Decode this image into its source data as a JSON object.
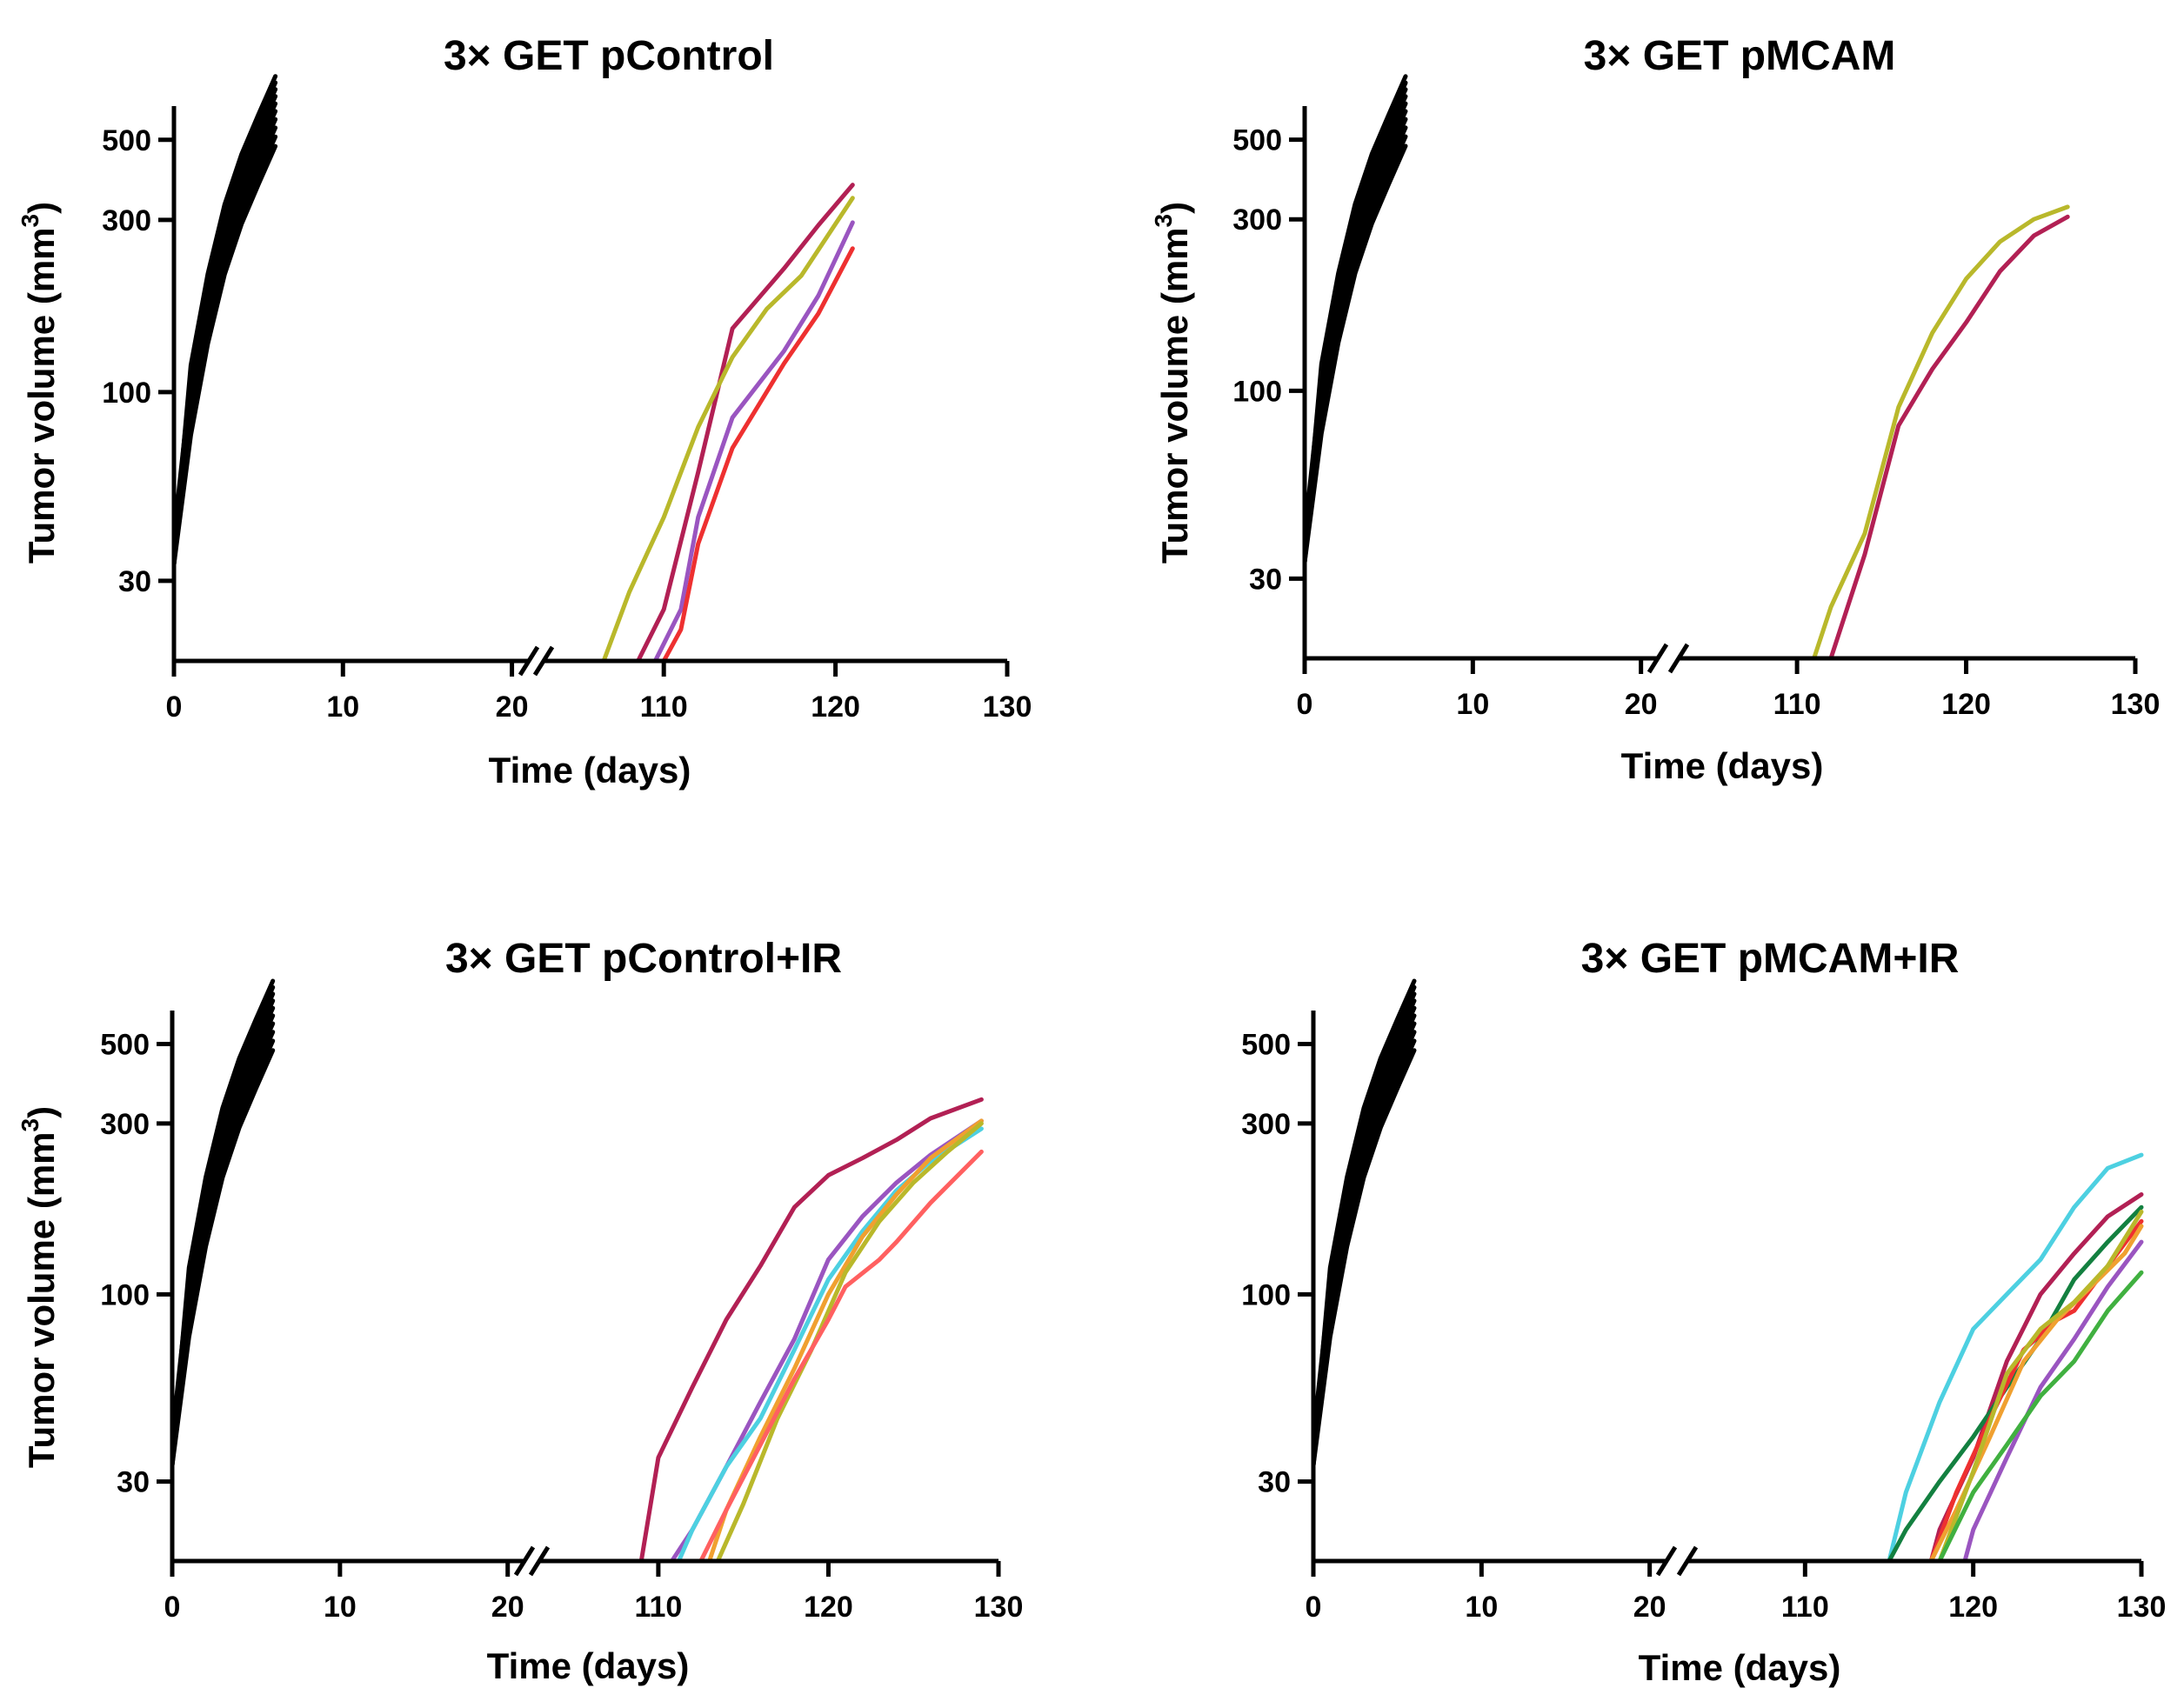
{
  "figure": {
    "layout": "2x2 grid of log-scale tumor growth charts with broken x-axes"
  },
  "chart_data": [
    {
      "type": "line",
      "title": "3× GET pControl",
      "xlabel": "Time (days)",
      "ylabel": "Tumor volume (mm",
      "ylabel_sup": "3",
      "ylabel_close": ")",
      "y_scale": "log",
      "ylim": [
        18,
        620
      ],
      "y_ticks": [
        30,
        100,
        300,
        500
      ],
      "x_segments": [
        {
          "range": [
            0,
            21
          ],
          "ticks": [
            0,
            10,
            20
          ]
        },
        {
          "range": [
            103,
            130
          ],
          "ticks": [
            110,
            120,
            130
          ]
        }
      ],
      "x_break_between": [
        21,
        103
      ],
      "grid": false,
      "legend": "none",
      "control_series": {
        "color": "#000000",
        "count": 10,
        "x": [
          0,
          1,
          2,
          3,
          4,
          5,
          6
        ],
        "base_values": [
          37,
          95,
          170,
          265,
          365,
          470,
          600
        ]
      },
      "series": [
        {
          "color": "#b22054",
          "x": [
            108.5,
            110,
            112,
            114,
            117,
            119,
            121
          ],
          "values": [
            18,
            25,
            60,
            150,
            220,
            290,
            375
          ]
        },
        {
          "color": "#b9b82b",
          "x": [
            106.5,
            108,
            110,
            112,
            114,
            116,
            118,
            121
          ],
          "values": [
            18,
            28,
            45,
            80,
            125,
            170,
            210,
            345
          ]
        },
        {
          "color": "#9a55c0",
          "x": [
            109.5,
            111,
            112,
            114,
            117,
            119,
            121
          ],
          "values": [
            18,
            25,
            45,
            85,
            130,
            185,
            295
          ]
        },
        {
          "color": "#ee3030",
          "x": [
            110,
            111,
            112,
            114,
            117,
            119,
            121
          ],
          "values": [
            18,
            22,
            38,
            70,
            120,
            165,
            250
          ]
        }
      ]
    },
    {
      "type": "line",
      "title": "3× GET pMCAM",
      "xlabel": "Time (days)",
      "ylabel": "Tumor volume (mm",
      "ylabel_sup": "3",
      "ylabel_close": ")",
      "y_scale": "log",
      "ylim": [
        18,
        620
      ],
      "y_ticks": [
        30,
        100,
        300,
        500
      ],
      "x_segments": [
        {
          "range": [
            0,
            21
          ],
          "ticks": [
            0,
            10,
            20
          ]
        },
        {
          "range": [
            103,
            130
          ],
          "ticks": [
            110,
            120,
            130
          ]
        }
      ],
      "x_break_between": [
        21,
        103
      ],
      "grid": false,
      "legend": "none",
      "control_series": {
        "color": "#000000",
        "count": 10,
        "x": [
          0,
          1,
          2,
          3,
          4,
          5,
          6
        ],
        "base_values": [
          37,
          95,
          170,
          265,
          365,
          470,
          600
        ]
      },
      "series": [
        {
          "color": "#b9b82b",
          "x": [
            111,
            112,
            114,
            116,
            118,
            120,
            122,
            124,
            126
          ],
          "values": [
            18,
            25,
            40,
            90,
            145,
            205,
            260,
            300,
            325
          ]
        },
        {
          "color": "#b22054",
          "x": [
            112,
            114,
            116,
            118,
            120,
            122,
            124,
            126
          ],
          "values": [
            18,
            35,
            80,
            115,
            155,
            215,
            270,
            305
          ]
        }
      ]
    },
    {
      "type": "line",
      "title": "3× GET pControl+IR",
      "xlabel": "Time (days)",
      "ylabel": "Tumor volume (mm",
      "ylabel_sup": "3",
      "ylabel_close": ")",
      "y_scale": "log",
      "ylim": [
        18,
        620
      ],
      "y_ticks": [
        30,
        100,
        300,
        500
      ],
      "x_segments": [
        {
          "range": [
            0,
            21
          ],
          "ticks": [
            0,
            10,
            20
          ]
        },
        {
          "range": [
            103,
            130
          ],
          "ticks": [
            110,
            120,
            130
          ]
        }
      ],
      "x_break_between": [
        21,
        103
      ],
      "grid": false,
      "legend": "none",
      "control_series": {
        "color": "#000000",
        "count": 10,
        "x": [
          0,
          1,
          2,
          3,
          4,
          5,
          6
        ],
        "base_values": [
          37,
          95,
          170,
          265,
          365,
          470,
          600
        ]
      },
      "series": [
        {
          "color": "#b22054",
          "x": [
            109,
            110,
            112,
            114,
            116,
            118,
            120,
            122,
            124,
            126,
            129
          ],
          "values": [
            18,
            35,
            55,
            85,
            120,
            175,
            215,
            240,
            270,
            310,
            350
          ]
        },
        {
          "color": "#9a55c0",
          "x": [
            110.8,
            112,
            114,
            116,
            118,
            120,
            122,
            124,
            126,
            129
          ],
          "values": [
            18,
            22,
            33,
            50,
            75,
            125,
            165,
            205,
            245,
            305
          ]
        },
        {
          "color": "#4dd0e1",
          "x": [
            111.2,
            112,
            114,
            116,
            118,
            120,
            122,
            124,
            126,
            129
          ],
          "values": [
            18,
            22,
            33,
            45,
            70,
            110,
            150,
            195,
            235,
            290
          ]
        },
        {
          "color": "#f0a030",
          "x": [
            113,
            114,
            116,
            118,
            120,
            122,
            124,
            126,
            129
          ],
          "values": [
            18,
            25,
            40,
            62,
            100,
            145,
            190,
            240,
            305
          ]
        },
        {
          "color": "#b9b82b",
          "x": [
            113.5,
            115,
            117,
            119,
            121,
            123,
            125,
            127,
            129
          ],
          "values": [
            18,
            26,
            45,
            70,
            115,
            160,
            205,
            250,
            300
          ]
        },
        {
          "color": "#ff6060",
          "x": [
            112.5,
            114,
            116,
            118,
            120,
            121,
            123,
            124,
            126,
            129
          ],
          "values": [
            18,
            25,
            38,
            58,
            85,
            105,
            125,
            140,
            180,
            250
          ]
        }
      ]
    },
    {
      "type": "line",
      "title": "3× GET pMCAM+IR",
      "xlabel": "Time (days)",
      "ylabel": "",
      "y_scale": "log",
      "ylim": [
        18,
        620
      ],
      "y_ticks": [
        30,
        100,
        300,
        500
      ],
      "x_segments": [
        {
          "range": [
            0,
            21
          ],
          "ticks": [
            0,
            10,
            20
          ]
        },
        {
          "range": [
            103,
            130
          ],
          "ticks": [
            110,
            120,
            130
          ]
        }
      ],
      "x_break_between": [
        21,
        103
      ],
      "grid": false,
      "legend": "none",
      "control_series": {
        "color": "#000000",
        "count": 10,
        "x": [
          0,
          1,
          2,
          3,
          4,
          5,
          6
        ],
        "base_values": [
          37,
          95,
          170,
          265,
          365,
          470,
          600
        ]
      },
      "series": [
        {
          "color": "#4dd0e1",
          "x": [
            115,
            116,
            118,
            120,
            122,
            124,
            126,
            128,
            130
          ],
          "values": [
            18,
            28,
            50,
            80,
            100,
            125,
            175,
            225,
            245
          ]
        },
        {
          "color": "#b22054",
          "x": [
            117.5,
            118,
            120,
            122,
            124,
            126,
            128,
            130
          ],
          "values": [
            18,
            22,
            35,
            65,
            100,
            130,
            165,
            190
          ]
        },
        {
          "color": "#138040",
          "x": [
            115,
            116,
            118,
            120,
            122,
            124,
            126,
            128,
            130
          ],
          "values": [
            18,
            22,
            30,
            40,
            55,
            75,
            110,
            140,
            175
          ]
        },
        {
          "color": "#ee3030",
          "x": [
            117.5,
            119,
            121,
            123,
            125,
            126,
            128,
            130
          ],
          "values": [
            18,
            28,
            45,
            70,
            85,
            90,
            120,
            160
          ]
        },
        {
          "color": "#f0a030",
          "x": [
            117.5,
            119,
            121,
            123,
            125,
            127,
            129,
            130
          ],
          "values": [
            18,
            25,
            40,
            65,
            85,
            105,
            130,
            155
          ]
        },
        {
          "color": "#b9b82b",
          "x": [
            118,
            120,
            122,
            124,
            126,
            128,
            130
          ],
          "values": [
            18,
            32,
            60,
            80,
            95,
            120,
            170
          ]
        },
        {
          "color": "#9a55c0",
          "x": [
            119.5,
            120,
            122,
            124,
            126,
            128,
            130
          ],
          "values": [
            18,
            22,
            35,
            55,
            75,
            105,
            140
          ]
        },
        {
          "color": "#40b040",
          "x": [
            118,
            120,
            122,
            124,
            126,
            128,
            130
          ],
          "values": [
            18,
            28,
            38,
            52,
            65,
            90,
            115
          ]
        }
      ]
    }
  ]
}
